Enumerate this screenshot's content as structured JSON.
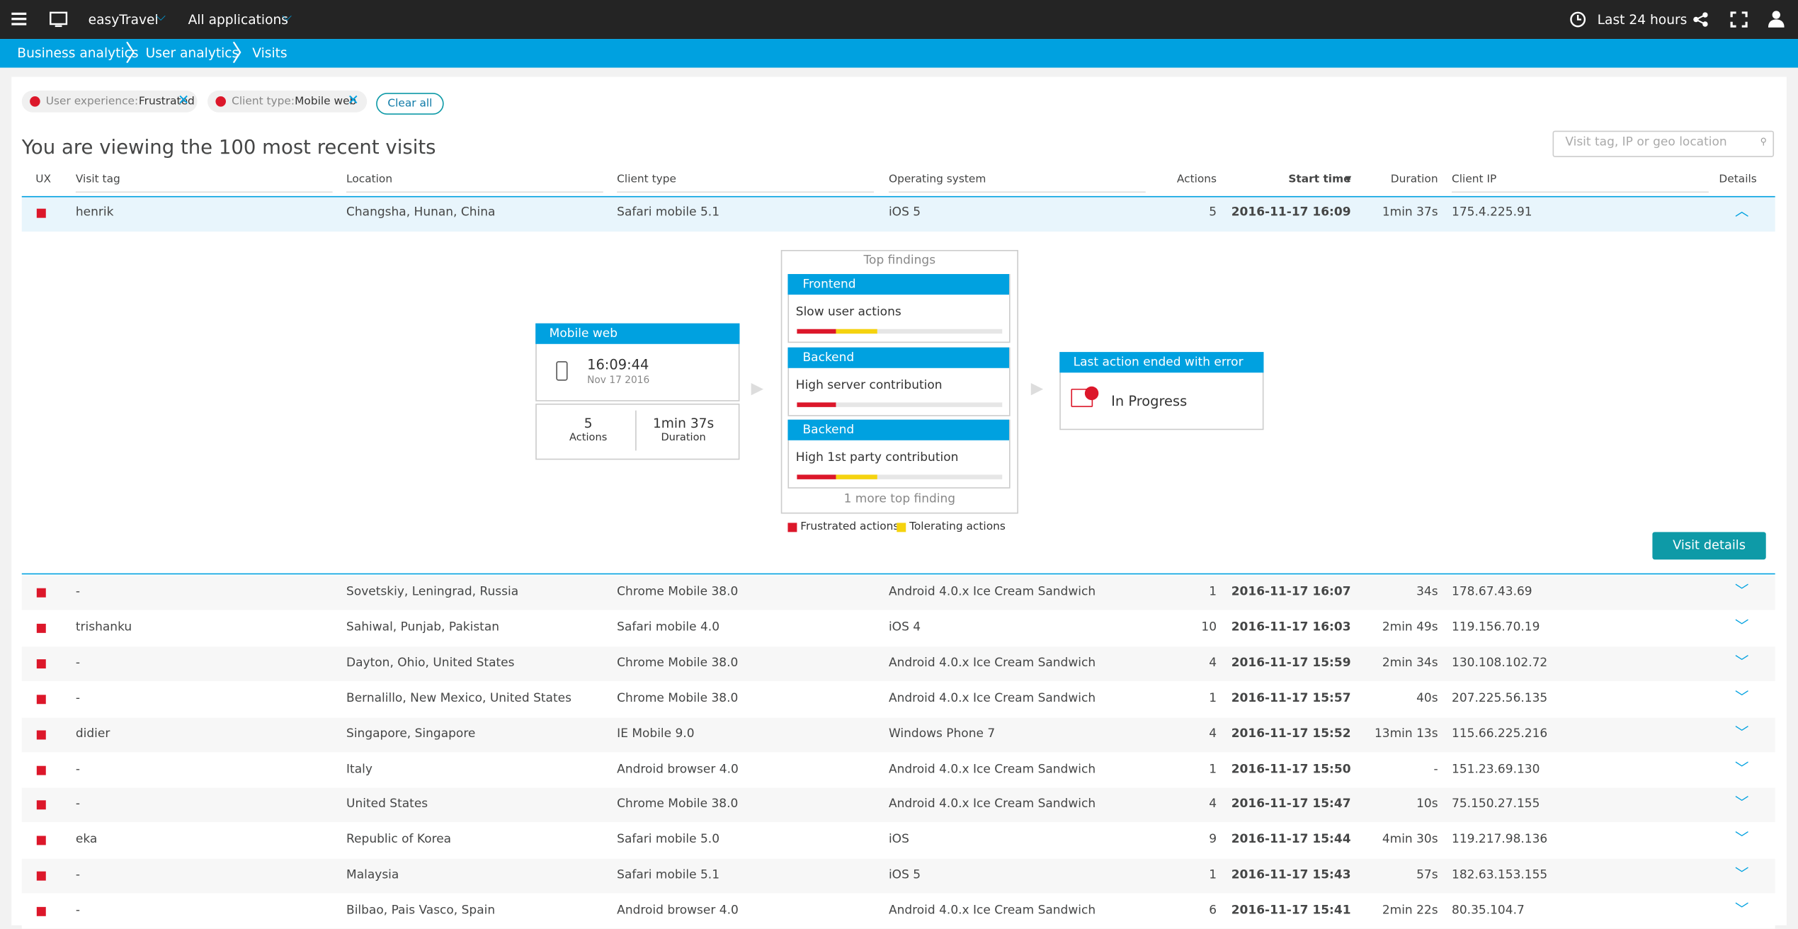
{
  "header": {
    "environment": "easyTravel",
    "applications": "All applications",
    "timeframe": "Last 24 hours"
  },
  "breadcrumbs": [
    "Business analytics",
    "User analytics",
    "Visits"
  ],
  "filters": [
    {
      "key": "User experience:",
      "value": "Frustrated"
    },
    {
      "key": "Client type:",
      "value": "Mobile web"
    }
  ],
  "clear_all": "Clear all",
  "heading": "You are viewing the 100 most recent visits",
  "search_placeholder": "Visit tag, IP or geo location",
  "table": {
    "columns": [
      "UX",
      "Visit tag",
      "Location",
      "Client type",
      "Operating system",
      "Actions",
      "Start time",
      "Duration",
      "Client IP",
      "Details"
    ],
    "rows": [
      [
        "henrik",
        "Changsha, Hunan, China",
        "Safari mobile 5.1",
        "iOS 5",
        "5",
        "2016-11-17 16:09",
        "1min 37s",
        "175.4.225.91"
      ],
      [
        "-",
        "Sovetskiy, Leningrad, Russia",
        "Chrome Mobile 38.0",
        "Android 4.0.x Ice Cream Sandwich",
        "1",
        "2016-11-17 16:07",
        "34s",
        "178.67.43.69"
      ],
      [
        "trishanku",
        "Sahiwal, Punjab, Pakistan",
        "Safari mobile 4.0",
        "iOS 4",
        "10",
        "2016-11-17 16:03",
        "2min 49s",
        "119.156.70.19"
      ],
      [
        "-",
        "Dayton, Ohio, United States",
        "Chrome Mobile 38.0",
        "Android 4.0.x Ice Cream Sandwich",
        "4",
        "2016-11-17 15:59",
        "2min 34s",
        "130.108.102.72"
      ],
      [
        "-",
        "Bernalillo, New Mexico, United States",
        "Chrome Mobile 38.0",
        "Android 4.0.x Ice Cream Sandwich",
        "1",
        "2016-11-17 15:57",
        "40s",
        "207.225.56.135"
      ],
      [
        "didier",
        "Singapore, Singapore",
        "IE Mobile 9.0",
        "Windows Phone 7",
        "4",
        "2016-11-17 15:52",
        "13min 13s",
        "115.66.225.216"
      ],
      [
        "-",
        "Italy",
        "Android browser 4.0",
        "Android 4.0.x Ice Cream Sandwich",
        "1",
        "2016-11-17 15:50",
        "-",
        "151.23.69.130"
      ],
      [
        "-",
        "United States",
        "Chrome Mobile 38.0",
        "Android 4.0.x Ice Cream Sandwich",
        "4",
        "2016-11-17 15:47",
        "10s",
        "75.150.27.155"
      ],
      [
        "eka",
        "Republic of Korea",
        "Safari mobile 5.0",
        "iOS",
        "9",
        "2016-11-17 15:44",
        "4min 30s",
        "119.217.98.136"
      ],
      [
        "-",
        "Malaysia",
        "Safari mobile 5.1",
        "iOS 5",
        "1",
        "2016-11-17 15:43",
        "57s",
        "182.63.153.155"
      ],
      [
        "-",
        "Bilbao, Pais Vasco, Spain",
        "Android browser 4.0",
        "Android 4.0.x Ice Cream Sandwich",
        "6",
        "2016-11-17 15:41",
        "2min 22s",
        "80.35.104.7"
      ]
    ]
  },
  "detail": {
    "client_card": {
      "title": "Mobile web",
      "time": "16:09:44",
      "date": "Nov 17 2016",
      "actions": "5",
      "actions_label": "Actions",
      "duration": "1min 37s",
      "duration_label": "Duration"
    },
    "findings": {
      "title": "Top findings",
      "items": [
        {
          "category": "Frontend",
          "text": "Slow user actions",
          "frustrated": 19,
          "tolerating": 20
        },
        {
          "category": "Backend",
          "text": "High server contribution",
          "frustrated": 19,
          "tolerating": 0
        },
        {
          "category": "Backend",
          "text": "High 1st party contribution",
          "frustrated": 19,
          "tolerating": 20
        }
      ],
      "more": "1 more top finding"
    },
    "last_action": {
      "title": "Last action ended with error",
      "status": "In Progress"
    },
    "legend": [
      "Frustrated actions",
      "Tolerating actions"
    ],
    "button": "Visit details"
  }
}
